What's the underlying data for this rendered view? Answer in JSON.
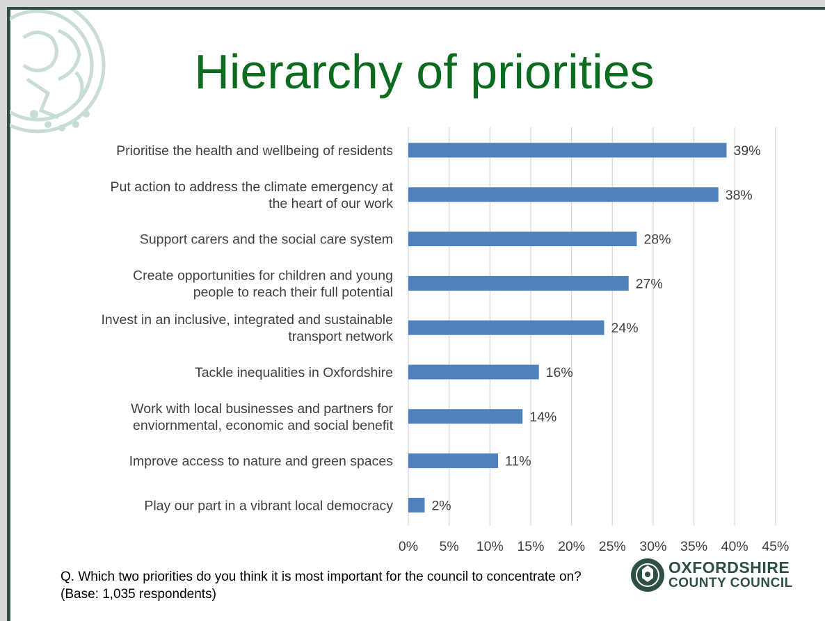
{
  "title": "Hierarchy of priorities",
  "footnote": "Q. Which two priorities do you think it is most important for the council to concentrate on? (Base: 1,035 respondents)",
  "logo": {
    "line1": "OXFORDSHIRE",
    "line2": "COUNTY COUNCIL",
    "icon": "council-crest-icon"
  },
  "colors": {
    "title": "#0b6b1e",
    "bar": "#4f81bd",
    "frame": "#2e4f44",
    "text": "#404040"
  },
  "chart_data": {
    "type": "bar",
    "orientation": "horizontal",
    "categories": [
      [
        "Prioritise the health and wellbeing of residents"
      ],
      [
        "Put action to address the climate emergency at",
        "the heart of our work"
      ],
      [
        "Support carers and the social care system"
      ],
      [
        "Create opportunities for children and young",
        "people to reach their full potential"
      ],
      [
        "Invest in an inclusive, integrated and sustainable",
        "transport network"
      ],
      [
        "Tackle inequalities in Oxfordshire"
      ],
      [
        "Work with local businesses and partners for",
        "enviornmental, economic and social benefit"
      ],
      [
        "Improve access to nature and green spaces"
      ],
      [
        "Play our part in a vibrant local democracy"
      ]
    ],
    "values": [
      39,
      38,
      28,
      27,
      24,
      16,
      14,
      11,
      2
    ],
    "value_labels": [
      "39%",
      "38%",
      "28%",
      "27%",
      "24%",
      "16%",
      "14%",
      "11%",
      "2%"
    ],
    "xlim": [
      0,
      45
    ],
    "ticks": [
      "0%",
      "5%",
      "10%",
      "15%",
      "20%",
      "25%",
      "30%",
      "35%",
      "40%",
      "45%"
    ],
    "grid": true
  }
}
